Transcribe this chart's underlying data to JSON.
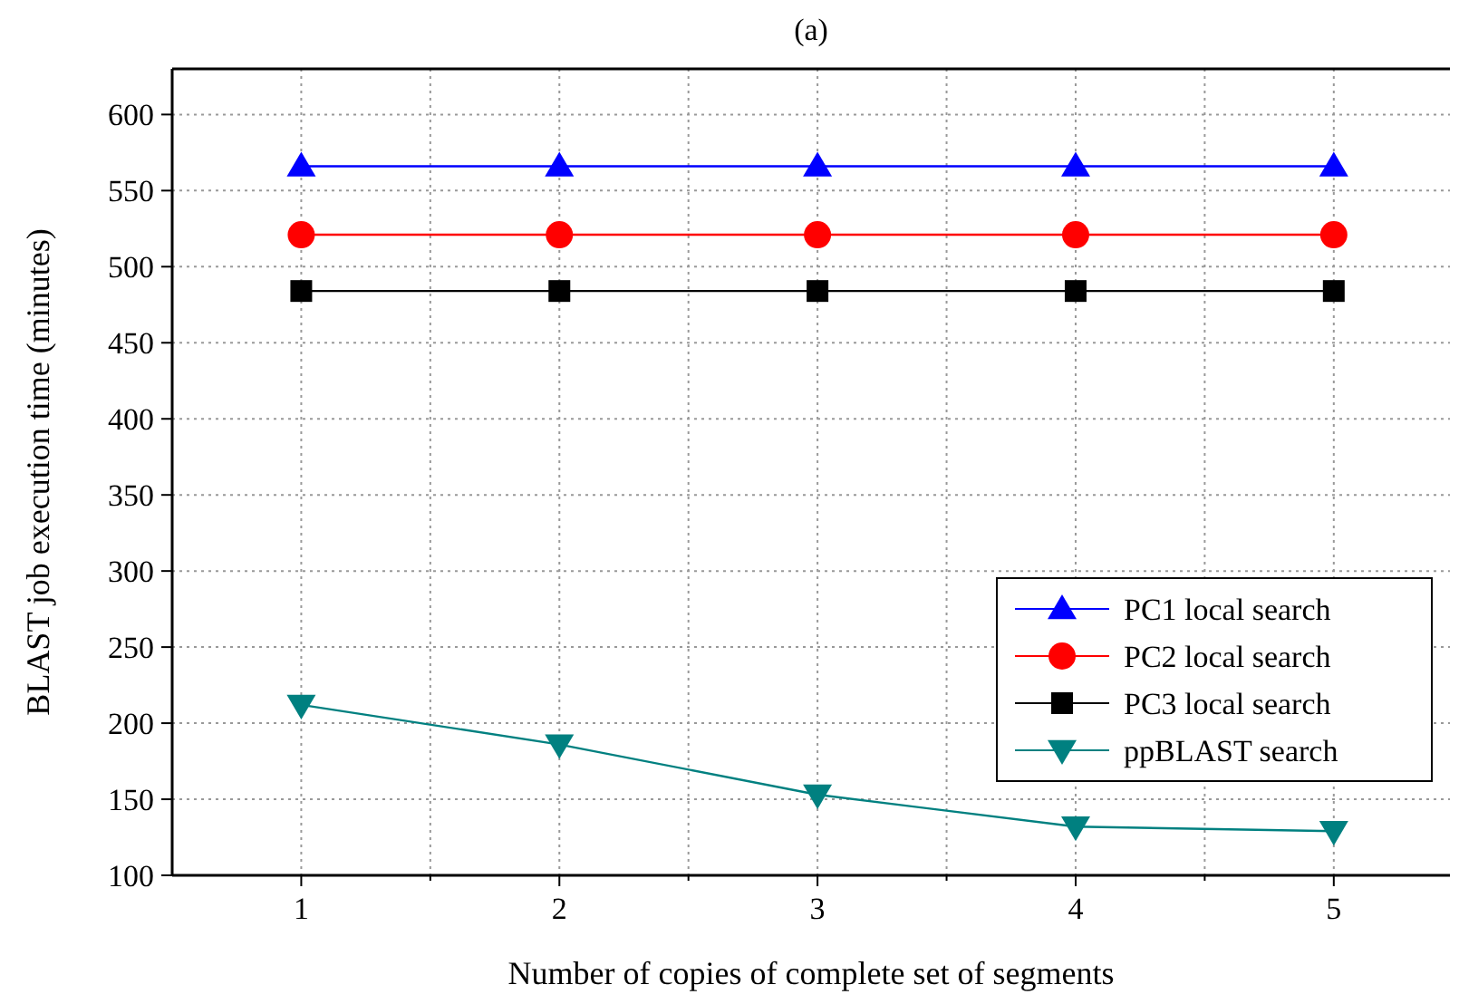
{
  "chart_data": {
    "type": "line",
    "title": "(a)",
    "xlabel": "Number of copies of complete set of segments",
    "ylabel": "BLAST job execution time (minutes)",
    "x": [
      1,
      2,
      3,
      4,
      5
    ],
    "xlim": [
      0.5,
      5.45
    ],
    "xticks": [
      1,
      {
        "value": 1.5,
        "label": null
      },
      2,
      {
        "value": 2.5,
        "label": null
      },
      3,
      {
        "value": 3.5,
        "label": null
      },
      4,
      {
        "value": 4.5,
        "label": null
      },
      5
    ],
    "ylim": [
      100,
      630
    ],
    "yticks": [
      100,
      150,
      200,
      250,
      300,
      350,
      400,
      450,
      500,
      550,
      600
    ],
    "grid": true,
    "legend": "bottom right",
    "line_style": "solid",
    "series": [
      {
        "name": "PC1 local search",
        "color": "#0000ff",
        "marker": "triangle",
        "values": [
          566,
          566,
          566,
          566,
          566
        ]
      },
      {
        "name": "PC2 local search",
        "color": "#ff0000",
        "marker": "circle",
        "values": [
          521,
          521,
          521,
          521,
          521
        ]
      },
      {
        "name": "PC3 local search",
        "color": "#000000",
        "marker": "square",
        "values": [
          484,
          484,
          484,
          484,
          484
        ]
      },
      {
        "name": "ppBLAST search",
        "color": "#008080",
        "marker": "triangle-down",
        "values": [
          212,
          186,
          153,
          132,
          129
        ]
      }
    ]
  }
}
